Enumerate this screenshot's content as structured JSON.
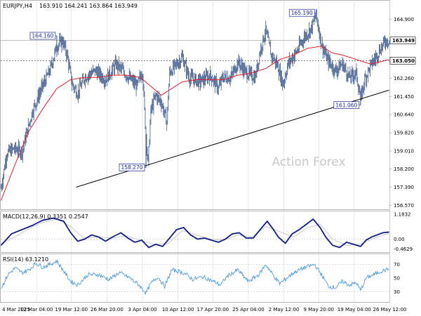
{
  "header": {
    "symbol_label": "EURJPY,H4",
    "ohlc_label": "163.910 164.241 163.864 163.949"
  },
  "watermark": "Action Forex",
  "colors": {
    "candle": "#1f3f78",
    "ma": "#e31b23",
    "macd_line": "#0d1a8a",
    "macd_signal": "#c9c9c9",
    "rsi": "#3a8fd8",
    "grid": "#d7d7d7",
    "trendline": "#000000",
    "label_text": "#1a2a99"
  },
  "chart_data": [
    {
      "type": "candlestick",
      "title": "EURJPY,H4",
      "ylim": [
        156.4,
        165.7
      ],
      "y_ticks": [
        156.57,
        157.39,
        158.2,
        159.01,
        159.82,
        160.64,
        161.45,
        162.26,
        163.05,
        163.949,
        164.9
      ],
      "y_tick_labels": [
        "156.570",
        "157.390",
        "158.200",
        "159.010",
        "159.820",
        "160.640",
        "161.450",
        "162.260",
        "163.050",
        "163.949",
        "164.900"
      ],
      "x_labels": [
        "4 Mar 2025",
        "12 Mar 04:00",
        "19 Mar 12:00",
        "26 Mar 20:00",
        "3 Apr 04:00",
        "10 Apr 12:00",
        "17 Apr 20:00",
        "25 Apr 04:00",
        "2 May 12:00",
        "9 May 20:00",
        "19 May 04:00",
        "26 May 12:00"
      ],
      "current_price": 163.949,
      "current_price_label": "163.949",
      "level_line": 163.05,
      "level_line_label": "163.050",
      "annotations": [
        {
          "label": "164.160",
          "bar": 80,
          "price": 164.16
        },
        {
          "label": "158.270",
          "bar": 208,
          "price": 158.27
        },
        {
          "label": "165.190",
          "bar": 452,
          "price": 165.19
        },
        {
          "label": "161.060",
          "bar": 516,
          "price": 161.06
        }
      ],
      "trendline": {
        "from": {
          "bar": 108,
          "price": 157.39
        },
        "to": {
          "bar": 557,
          "price": 161.73
        }
      },
      "keypoints": [
        [
          0,
          157.35
        ],
        [
          8,
          158.9
        ],
        [
          18,
          159.1
        ],
        [
          30,
          159.0
        ],
        [
          45,
          160.8
        ],
        [
          58,
          161.8
        ],
        [
          70,
          162.6
        ],
        [
          80,
          163.7
        ],
        [
          88,
          163.95
        ],
        [
          95,
          163.3
        ],
        [
          102,
          162.0
        ],
        [
          110,
          161.6
        ],
        [
          120,
          162.3
        ],
        [
          135,
          162.6
        ],
        [
          150,
          162.2
        ],
        [
          165,
          162.9
        ],
        [
          180,
          162.4
        ],
        [
          195,
          161.9
        ],
        [
          203,
          162.6
        ],
        [
          207,
          160.2
        ],
        [
          211,
          158.4
        ],
        [
          215,
          160.8
        ],
        [
          222,
          161.5
        ],
        [
          230,
          161.2
        ],
        [
          238,
          160.3
        ],
        [
          242,
          162.5
        ],
        [
          250,
          162.8
        ],
        [
          260,
          163.2
        ],
        [
          270,
          162.3
        ],
        [
          285,
          162.1
        ],
        [
          300,
          162.4
        ],
        [
          312,
          161.8
        ],
        [
          318,
          162.3
        ],
        [
          330,
          162.3
        ],
        [
          340,
          163.0
        ],
        [
          352,
          162.5
        ],
        [
          365,
          162.3
        ],
        [
          372,
          163.5
        ],
        [
          380,
          164.4
        ],
        [
          388,
          163.3
        ],
        [
          396,
          162.9
        ],
        [
          405,
          162.0
        ],
        [
          412,
          162.9
        ],
        [
          425,
          163.5
        ],
        [
          435,
          164.1
        ],
        [
          445,
          164.5
        ],
        [
          452,
          165.1
        ],
        [
          460,
          163.8
        ],
        [
          468,
          163.1
        ],
        [
          480,
          162.6
        ],
        [
          490,
          162.9
        ],
        [
          500,
          162.3
        ],
        [
          510,
          162.5
        ],
        [
          516,
          161.3
        ],
        [
          522,
          162.2
        ],
        [
          530,
          162.8
        ],
        [
          538,
          163.2
        ],
        [
          545,
          163.6
        ],
        [
          552,
          163.95
        ],
        [
          557,
          163.949
        ]
      ],
      "ma_keypoints": [
        [
          0,
          156.8
        ],
        [
          20,
          158.4
        ],
        [
          40,
          159.9
        ],
        [
          60,
          160.9
        ],
        [
          80,
          161.8
        ],
        [
          100,
          162.2
        ],
        [
          120,
          162.3
        ],
        [
          140,
          162.3
        ],
        [
          160,
          162.4
        ],
        [
          180,
          162.4
        ],
        [
          200,
          162.3
        ],
        [
          215,
          161.9
        ],
        [
          230,
          161.5
        ],
        [
          245,
          161.8
        ],
        [
          260,
          162.1
        ],
        [
          280,
          162.2
        ],
        [
          300,
          162.2
        ],
        [
          320,
          162.2
        ],
        [
          340,
          162.4
        ],
        [
          360,
          162.5
        ],
        [
          380,
          162.7
        ],
        [
          400,
          163.1
        ],
        [
          420,
          163.3
        ],
        [
          440,
          163.6
        ],
        [
          460,
          163.7
        ],
        [
          475,
          163.4
        ],
        [
          490,
          163.3
        ],
        [
          510,
          163.1
        ],
        [
          530,
          162.9
        ],
        [
          545,
          163.0
        ],
        [
          557,
          163.1
        ]
      ]
    },
    {
      "type": "line",
      "title": "MACD(12,26,9) 0.3351 0.2547",
      "ylim": [
        -0.62,
        1.32
      ],
      "y_ticks": [
        1.1832,
        0.0,
        -0.4629
      ],
      "y_tick_labels": [
        "1.1832",
        "0.00",
        "-0.4629"
      ],
      "macd_keypoints": [
        [
          0,
          -0.3
        ],
        [
          15,
          0.25
        ],
        [
          30,
          0.45
        ],
        [
          45,
          0.65
        ],
        [
          60,
          0.9
        ],
        [
          75,
          1.0
        ],
        [
          90,
          0.85
        ],
        [
          100,
          0.3
        ],
        [
          110,
          -0.1
        ],
        [
          120,
          0.0
        ],
        [
          130,
          0.2
        ],
        [
          140,
          0.1
        ],
        [
          150,
          -0.1
        ],
        [
          160,
          0.1
        ],
        [
          172,
          0.3
        ],
        [
          182,
          0.05
        ],
        [
          192,
          -0.15
        ],
        [
          202,
          -0.05
        ],
        [
          212,
          -0.4
        ],
        [
          222,
          -0.25
        ],
        [
          232,
          -0.35
        ],
        [
          242,
          0.05
        ],
        [
          252,
          0.45
        ],
        [
          262,
          0.55
        ],
        [
          272,
          0.2
        ],
        [
          282,
          0.0
        ],
        [
          292,
          0.05
        ],
        [
          302,
          -0.05
        ],
        [
          312,
          -0.15
        ],
        [
          322,
          0.0
        ],
        [
          332,
          0.25
        ],
        [
          342,
          0.3
        ],
        [
          352,
          0.05
        ],
        [
          362,
          0.05
        ],
        [
          372,
          0.45
        ],
        [
          382,
          0.85
        ],
        [
          390,
          0.5
        ],
        [
          398,
          0.1
        ],
        [
          408,
          -0.2
        ],
        [
          418,
          0.25
        ],
        [
          428,
          0.45
        ],
        [
          438,
          0.7
        ],
        [
          448,
          0.95
        ],
        [
          458,
          0.55
        ],
        [
          466,
          0.1
        ],
        [
          476,
          -0.3
        ],
        [
          486,
          -0.4
        ],
        [
          496,
          -0.15
        ],
        [
          506,
          -0.25
        ],
        [
          516,
          -0.35
        ],
        [
          524,
          -0.05
        ],
        [
          532,
          0.1
        ],
        [
          540,
          0.2
        ],
        [
          548,
          0.3
        ],
        [
          557,
          0.3351
        ]
      ],
      "signal_keypoints": [
        [
          0,
          -0.2
        ],
        [
          20,
          0.1
        ],
        [
          40,
          0.5
        ],
        [
          60,
          0.8
        ],
        [
          80,
          0.95
        ],
        [
          100,
          0.6
        ],
        [
          118,
          0.05
        ],
        [
          140,
          0.1
        ],
        [
          160,
          0.05
        ],
        [
          180,
          0.15
        ],
        [
          200,
          -0.05
        ],
        [
          220,
          -0.25
        ],
        [
          240,
          -0.2
        ],
        [
          260,
          0.4
        ],
        [
          280,
          0.2
        ],
        [
          300,
          0.0
        ],
        [
          320,
          -0.05
        ],
        [
          340,
          0.2
        ],
        [
          360,
          0.1
        ],
        [
          380,
          0.6
        ],
        [
          400,
          0.35
        ],
        [
          420,
          0.1
        ],
        [
          440,
          0.55
        ],
        [
          458,
          0.7
        ],
        [
          476,
          0.0
        ],
        [
          496,
          -0.3
        ],
        [
          516,
          -0.25
        ],
        [
          536,
          0.05
        ],
        [
          557,
          0.2547
        ]
      ]
    },
    {
      "type": "line",
      "title": "RSI(14) 63.1210",
      "ylim": [
        15,
        85
      ],
      "y_ticks": [
        70,
        50,
        30
      ],
      "y_tick_labels": [
        "70",
        "50",
        "30"
      ],
      "rsi_keypoints": [
        [
          0,
          35
        ],
        [
          10,
          55
        ],
        [
          20,
          65
        ],
        [
          30,
          58
        ],
        [
          40,
          62
        ],
        [
          50,
          72
        ],
        [
          60,
          66
        ],
        [
          70,
          70
        ],
        [
          80,
          75
        ],
        [
          90,
          60
        ],
        [
          100,
          45
        ],
        [
          110,
          40
        ],
        [
          125,
          55
        ],
        [
          140,
          55
        ],
        [
          155,
          48
        ],
        [
          170,
          58
        ],
        [
          185,
          50
        ],
        [
          198,
          40
        ],
        [
          208,
          28
        ],
        [
          215,
          42
        ],
        [
          225,
          52
        ],
        [
          235,
          38
        ],
        [
          245,
          62
        ],
        [
          255,
          60
        ],
        [
          265,
          56
        ],
        [
          275,
          48
        ],
        [
          290,
          52
        ],
        [
          305,
          45
        ],
        [
          315,
          40
        ],
        [
          325,
          53
        ],
        [
          340,
          62
        ],
        [
          355,
          45
        ],
        [
          370,
          55
        ],
        [
          380,
          70
        ],
        [
          390,
          55
        ],
        [
          400,
          42
        ],
        [
          410,
          50
        ],
        [
          420,
          58
        ],
        [
          435,
          65
        ],
        [
          450,
          70
        ],
        [
          460,
          55
        ],
        [
          470,
          38
        ],
        [
          480,
          36
        ],
        [
          490,
          45
        ],
        [
          500,
          40
        ],
        [
          510,
          43
        ],
        [
          516,
          32
        ],
        [
          524,
          50
        ],
        [
          535,
          55
        ],
        [
          545,
          60
        ],
        [
          557,
          63.121
        ]
      ]
    }
  ]
}
